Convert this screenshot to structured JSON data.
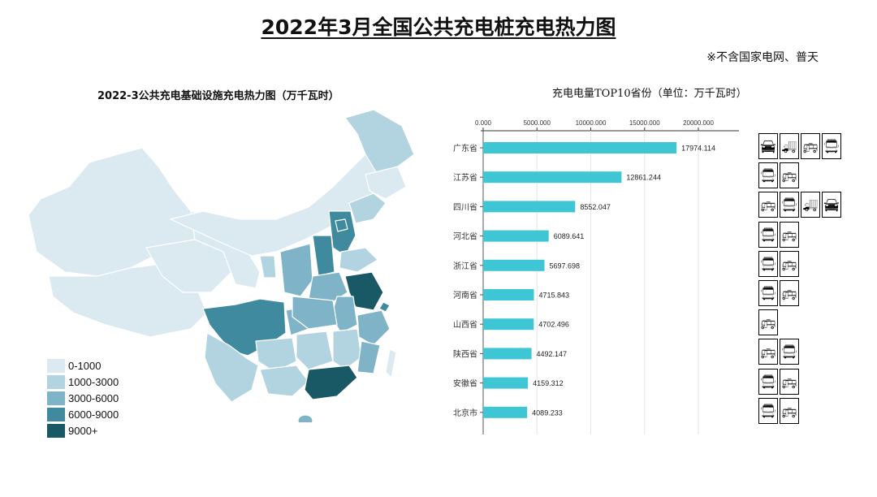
{
  "title": "2022年3月全国公共充电桩充电热力图",
  "note": "※不含国家电网、普天",
  "map": {
    "title": "2022-3公共充电基础设施充电热力图（万千瓦时）",
    "legend": [
      {
        "label": "0-1000",
        "color": "#dbe9f1"
      },
      {
        "label": "1000-3000",
        "color": "#b2d3e0"
      },
      {
        "label": "3000-6000",
        "color": "#7fb4c8"
      },
      {
        "label": "6000-9000",
        "color": "#3f8a9e"
      },
      {
        "label": "9000+",
        "color": "#195966"
      }
    ]
  },
  "chart_data": {
    "type": "bar",
    "orientation": "horizontal",
    "title": "充电电量TOP10省份（单位：万千瓦时）",
    "categories": [
      "广东省",
      "江苏省",
      "四川省",
      "河北省",
      "浙江省",
      "河南省",
      "山西省",
      "陕西省",
      "安徽省",
      "北京市"
    ],
    "values": [
      17974.114,
      12861.244,
      8552.047,
      6089.641,
      5697.698,
      4715.843,
      4702.496,
      4492.147,
      4159.312,
      4089.233
    ],
    "value_labels": [
      "17974.114",
      "12861.244",
      "8552.047",
      "6089.641",
      "5697.698",
      "4715.843",
      "4702.496",
      "4492.147",
      "4159.312",
      "4089.233"
    ],
    "xticks": [
      "0.000",
      "5000.000",
      "10000.000",
      "15000.000",
      "20000.000"
    ],
    "xlim": [
      0,
      20000
    ],
    "axis_position": "top",
    "bar_color": "#3ec6d4"
  },
  "icons": [
    [
      "car-front-icon",
      "truck-icon",
      "bus-side-icon",
      "bus-front-icon"
    ],
    [
      "bus-front-icon",
      "bus-side-icon"
    ],
    [
      "bus-side-icon",
      "bus-front-icon",
      "truck-icon",
      "car-front-icon"
    ],
    [
      "bus-front-icon",
      "bus-side-icon"
    ],
    [
      "bus-front-icon",
      "bus-side-icon"
    ],
    [
      "bus-front-icon",
      "bus-side-icon"
    ],
    [
      "bus-side-icon"
    ],
    [
      "bus-side-icon",
      "bus-front-icon"
    ],
    [
      "bus-front-icon",
      "bus-side-icon"
    ],
    [
      "bus-front-icon",
      "bus-side-icon"
    ]
  ]
}
